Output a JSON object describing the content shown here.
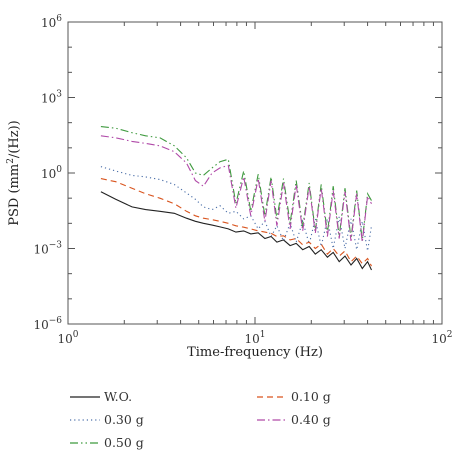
{
  "chart_data": {
    "type": "line",
    "title": "",
    "xlabel": "Time-frequency (Hz)",
    "ylabel_parts": [
      "PSD (mm",
      "2",
      "/(Hz))"
    ],
    "x_scale": "log",
    "y_scale": "log",
    "xlim": [
      1,
      100
    ],
    "ylim": [
      1e-06,
      1000000.0
    ],
    "x_ticks": [
      {
        "value": 1,
        "base": "10",
        "exp": "0"
      },
      {
        "value": 10,
        "base": "10",
        "exp": "1"
      },
      {
        "value": 100,
        "base": "10",
        "exp": "2"
      }
    ],
    "y_ticks": [
      {
        "value": 1e-06,
        "base": "10",
        "exp": "−6"
      },
      {
        "value": 0.001,
        "base": "10",
        "exp": "−3"
      },
      {
        "value": 1,
        "base": "10",
        "exp": "0"
      },
      {
        "value": 1000.0,
        "base": "10",
        "exp": "3"
      },
      {
        "value": 1000000.0,
        "base": "10",
        "exp": "6"
      }
    ],
    "grid": false,
    "legend_position": "below",
    "series": [
      {
        "name": "W.O.",
        "color": "#222222",
        "dash": "solid",
        "points": [
          [
            1.5,
            0.18
          ],
          [
            1.8,
            0.09
          ],
          [
            2.2,
            0.045
          ],
          [
            2.6,
            0.035
          ],
          [
            3.1,
            0.03
          ],
          [
            3.7,
            0.025
          ],
          [
            4.3,
            0.016
          ],
          [
            4.8,
            0.012
          ],
          [
            5.3,
            0.01
          ],
          [
            5.9,
            0.0085
          ],
          [
            6.5,
            0.0072
          ],
          [
            7.2,
            0.006
          ],
          [
            7.9,
            0.0045
          ],
          [
            8.7,
            0.005
          ],
          [
            9.5,
            0.0038
          ],
          [
            10.4,
            0.0042
          ],
          [
            11.3,
            0.0025
          ],
          [
            12.2,
            0.003
          ],
          [
            13.1,
            0.0018
          ],
          [
            14.2,
            0.0022
          ],
          [
            15.4,
            0.0013
          ],
          [
            16.6,
            0.0016
          ],
          [
            18.0,
            0.0009
          ],
          [
            19.5,
            0.0012
          ],
          [
            21.0,
            0.0006
          ],
          [
            22.6,
            0.0009
          ],
          [
            24.4,
            0.00045
          ],
          [
            26.2,
            0.0007
          ],
          [
            28.2,
            0.0003
          ],
          [
            30.3,
            0.0005
          ],
          [
            32.6,
            0.00022
          ],
          [
            35.0,
            0.0004
          ],
          [
            37.5,
            0.00016
          ],
          [
            40.0,
            0.0003
          ],
          [
            42.0,
            0.00014
          ]
        ]
      },
      {
        "name": "0.30 g",
        "color": "#4a6ea8",
        "dash": "dotted",
        "points": [
          [
            1.5,
            1.8
          ],
          [
            1.8,
            1.2
          ],
          [
            2.2,
            0.8
          ],
          [
            2.6,
            0.7
          ],
          [
            3.1,
            0.55
          ],
          [
            3.7,
            0.35
          ],
          [
            4.3,
            0.16
          ],
          [
            4.8,
            0.09
          ],
          [
            5.3,
            0.045
          ],
          [
            5.9,
            0.035
          ],
          [
            6.5,
            0.05
          ],
          [
            7.2,
            0.025
          ],
          [
            7.9,
            0.03
          ],
          [
            8.7,
            0.015
          ],
          [
            9.5,
            0.02
          ],
          [
            10.4,
            0.006
          ],
          [
            11.3,
            0.012
          ],
          [
            12.2,
            0.003
          ],
          [
            13.1,
            0.008
          ],
          [
            14.2,
            0.002
          ],
          [
            15.4,
            0.01
          ],
          [
            16.6,
            0.0018
          ],
          [
            18.0,
            0.012
          ],
          [
            19.5,
            0.0015
          ],
          [
            21.0,
            0.015
          ],
          [
            22.6,
            0.0012
          ],
          [
            24.4,
            0.015
          ],
          [
            26.2,
            0.001
          ],
          [
            28.2,
            0.018
          ],
          [
            30.3,
            0.001
          ],
          [
            32.6,
            0.015
          ],
          [
            35.0,
            0.0009
          ],
          [
            37.5,
            0.012
          ],
          [
            40.0,
            0.0008
          ],
          [
            42.0,
            0.008
          ]
        ]
      },
      {
        "name": "0.50 g",
        "color": "#3f9a3f",
        "dash": "dashdotdot",
        "points": [
          [
            1.5,
            70
          ],
          [
            1.8,
            60
          ],
          [
            2.2,
            40
          ],
          [
            2.6,
            30
          ],
          [
            3.1,
            25
          ],
          [
            3.7,
            12
          ],
          [
            4.3,
            4
          ],
          [
            4.8,
            1.0
          ],
          [
            5.3,
            0.8
          ],
          [
            5.9,
            1.6
          ],
          [
            6.5,
            2.8
          ],
          [
            7.2,
            3.5
          ],
          [
            7.9,
            0.06
          ],
          [
            8.7,
            1.2
          ],
          [
            9.5,
            0.03
          ],
          [
            10.4,
            0.9
          ],
          [
            11.3,
            0.02
          ],
          [
            12.2,
            0.7
          ],
          [
            13.1,
            0.015
          ],
          [
            14.2,
            0.6
          ],
          [
            15.4,
            0.01
          ],
          [
            16.6,
            0.5
          ],
          [
            18.0,
            0.007
          ],
          [
            19.5,
            0.4
          ],
          [
            21.0,
            0.005
          ],
          [
            22.6,
            0.35
          ],
          [
            24.4,
            0.004
          ],
          [
            26.2,
            0.3
          ],
          [
            28.2,
            0.003
          ],
          [
            30.3,
            0.25
          ],
          [
            32.6,
            0.0025
          ],
          [
            35.0,
            0.2
          ],
          [
            37.5,
            0.002
          ],
          [
            40.0,
            0.15
          ],
          [
            42.0,
            0.08
          ]
        ]
      },
      {
        "name": "0.10 g",
        "color": "#d9541e",
        "dash": "dashed",
        "points": [
          [
            1.5,
            0.6
          ],
          [
            1.8,
            0.45
          ],
          [
            2.2,
            0.25
          ],
          [
            2.6,
            0.15
          ],
          [
            3.1,
            0.1
          ],
          [
            3.7,
            0.06
          ],
          [
            4.3,
            0.03
          ],
          [
            4.8,
            0.02
          ],
          [
            5.3,
            0.016
          ],
          [
            5.9,
            0.014
          ],
          [
            6.5,
            0.012
          ],
          [
            7.2,
            0.01
          ],
          [
            7.9,
            0.008
          ],
          [
            8.7,
            0.007
          ],
          [
            9.5,
            0.006
          ],
          [
            10.4,
            0.005
          ],
          [
            11.3,
            0.0045
          ],
          [
            12.2,
            0.004
          ],
          [
            13.1,
            0.003
          ],
          [
            14.2,
            0.0032
          ],
          [
            15.4,
            0.0022
          ],
          [
            16.6,
            0.0025
          ],
          [
            18.0,
            0.0014
          ],
          [
            19.5,
            0.0018
          ],
          [
            21.0,
            0.001
          ],
          [
            22.6,
            0.0015
          ],
          [
            24.4,
            0.0006
          ],
          [
            26.2,
            0.001
          ],
          [
            28.2,
            0.0005
          ],
          [
            30.3,
            0.0008
          ],
          [
            32.6,
            0.0003
          ],
          [
            35.0,
            0.0005
          ],
          [
            37.5,
            0.00025
          ],
          [
            40.0,
            0.0004
          ],
          [
            42.0,
            0.0002
          ]
        ]
      },
      {
        "name": "0.40 g",
        "color": "#b04aa8",
        "dash": "dashdot",
        "points": [
          [
            1.5,
            30
          ],
          [
            1.8,
            25
          ],
          [
            2.2,
            18
          ],
          [
            2.6,
            15
          ],
          [
            3.1,
            12
          ],
          [
            3.7,
            7
          ],
          [
            4.3,
            2.5
          ],
          [
            4.8,
            0.5
          ],
          [
            5.3,
            0.3
          ],
          [
            5.9,
            1.0
          ],
          [
            6.5,
            1.6
          ],
          [
            7.2,
            2.0
          ],
          [
            7.9,
            0.04
          ],
          [
            8.7,
            0.7
          ],
          [
            9.5,
            0.02
          ],
          [
            10.4,
            0.6
          ],
          [
            11.3,
            0.012
          ],
          [
            12.2,
            0.5
          ],
          [
            13.1,
            0.008
          ],
          [
            14.2,
            0.4
          ],
          [
            15.4,
            0.006
          ],
          [
            16.6,
            0.35
          ],
          [
            18.0,
            0.005
          ],
          [
            19.5,
            0.3
          ],
          [
            21.0,
            0.004
          ],
          [
            22.6,
            0.25
          ],
          [
            24.4,
            0.003
          ],
          [
            26.2,
            0.2
          ],
          [
            28.2,
            0.0025
          ],
          [
            30.3,
            0.18
          ],
          [
            32.6,
            0.002
          ],
          [
            35.0,
            0.15
          ],
          [
            37.5,
            0.0018
          ],
          [
            40.0,
            0.12
          ],
          [
            42.0,
            0.06
          ]
        ]
      }
    ]
  }
}
